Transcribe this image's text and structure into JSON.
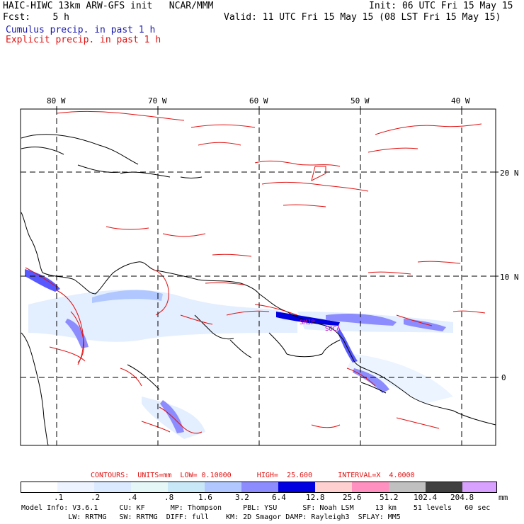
{
  "header": {
    "title": "HAIC-HIWC 13km ARW-GFS init   NCAR/MMM",
    "fcst": "Fcst:    5 h",
    "init": "Init: 06 UTC Fri 15 May 15",
    "valid": "Valid: 11 UTC Fri 15 May 15 (08 LST Fri 15 May 15)",
    "cumulus": "Cumulus precip. in past 1 h",
    "explicit": "Explicit precip. in past 1 h"
  },
  "map": {
    "lon_labels": [
      "80 W",
      "70 W",
      "60 W",
      "50 W",
      "40 W"
    ],
    "lat_labels": [
      "20 N",
      "10 N",
      "0"
    ],
    "stations": [
      "SMJP",
      "SOCA"
    ],
    "colors": {
      "cumulus": "#1a1ab0",
      "explicit": "#e01010",
      "coast": "#000000",
      "grid": "#000000"
    }
  },
  "contours": {
    "text": "CONTOURS:  UNITS=mm  LOW= 0.10000      HIGH=  25.600      INTERVAL=X  4.0000"
  },
  "colorbar": {
    "labels": [
      ".1",
      ".2",
      ".4",
      ".8",
      "1.6",
      "3.2",
      "6.4",
      "12.8",
      "25.6",
      "51.2",
      "102.4",
      "204.8"
    ],
    "unit": "mm",
    "colors": [
      "#ffffff",
      "#eef4ff",
      "#dceaff",
      "#e6f7f7",
      "#c8e8f8",
      "#b0c8ff",
      "#8c8cff",
      "#5858ff",
      "#0000e0",
      "#ffd0d0",
      "#ff90c0",
      "#c0c0c0",
      "#404040",
      "#d8a0ff"
    ]
  },
  "model_info": {
    "line1": "Model Info: V3.6.1     CU: KF      MP: Thompson     PBL: YSU      SF: Noah LSM     13 km    51 levels   60 sec",
    "line2": "           LW: RRTMG   SW: RRTMG  DIFF: full    KM: 2D Smagor DAMP: Rayleigh3  SFLAY: MM5"
  }
}
